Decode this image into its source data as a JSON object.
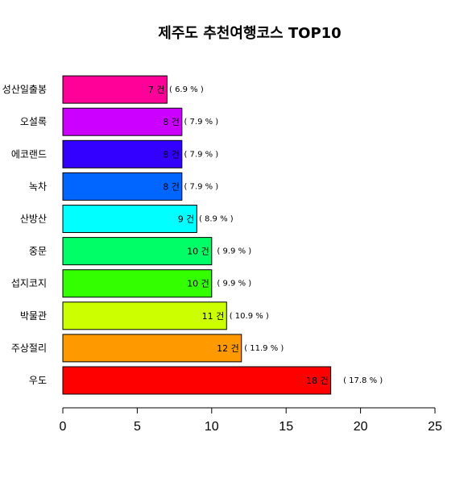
{
  "chart_data": {
    "type": "bar",
    "orientation": "horizontal",
    "title": "제주도 추천여행코스 TOP10",
    "xlabel": "",
    "ylabel": "",
    "xlim": [
      0,
      25
    ],
    "xticks": [
      0,
      5,
      10,
      15,
      20,
      25
    ],
    "grid": false,
    "legend": "none",
    "categories": [
      "우도",
      "주상절리",
      "박물관",
      "섭지코지",
      "중문",
      "산방산",
      "녹차",
      "에코랜드",
      "오설록",
      "성산일출봉"
    ],
    "values": [
      18,
      12,
      11,
      10,
      10,
      9,
      8,
      8,
      8,
      7
    ],
    "value_labels": [
      "18 건",
      "12 건",
      "11 건",
      "10 건",
      "10 건",
      "9 건",
      "8 건",
      "8 건",
      "8 건",
      "7 건"
    ],
    "percent_labels": [
      "( 17.8 % )",
      "( 11.9 % )",
      "( 10.9 % )",
      "( 9.9 % )",
      "( 9.9 % )",
      "( 8.9 % )",
      "( 7.9 % )",
      "( 7.9 % )",
      "( 7.9 % )",
      "( 6.9 % )"
    ],
    "colors": [
      "#FF0000",
      "#FF9900",
      "#CCFF00",
      "#33FF00",
      "#00FF66",
      "#00FFFF",
      "#0066FF",
      "#3300FF",
      "#CC00FF",
      "#FF0099"
    ]
  }
}
